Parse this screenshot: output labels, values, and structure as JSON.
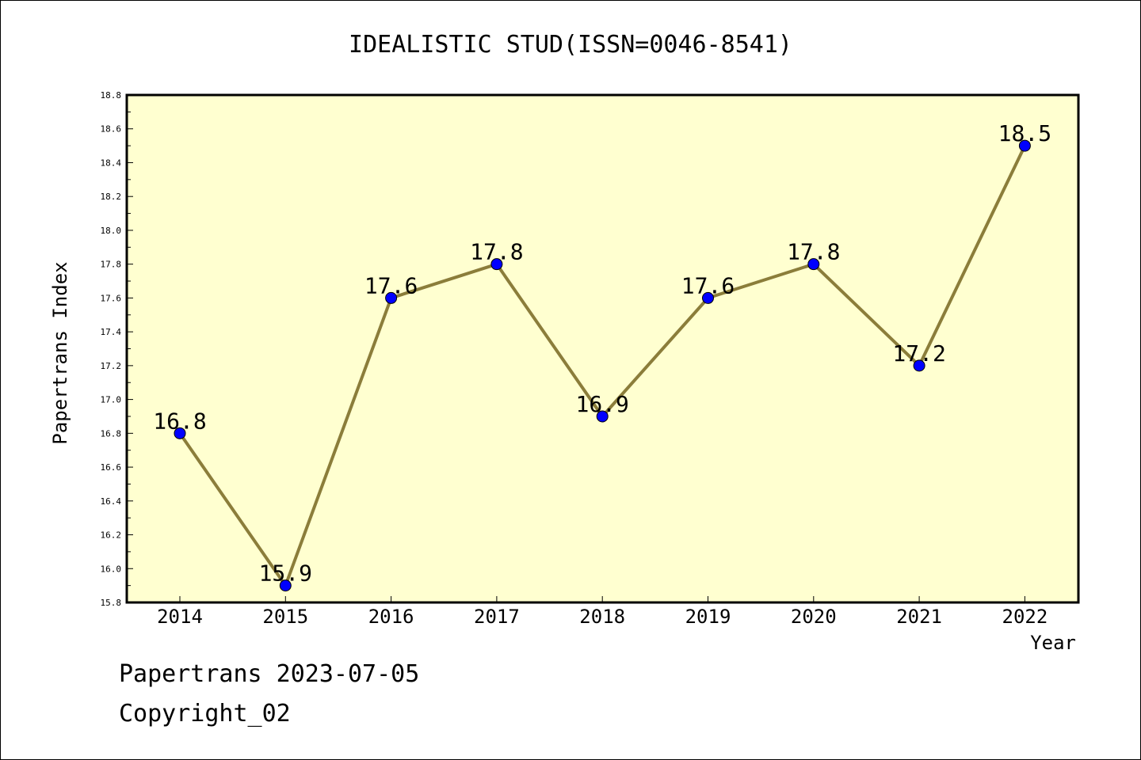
{
  "chart_data": {
    "type": "line",
    "title": "IDEALISTIC STUD(ISSN=0046-8541)",
    "xlabel": "Year",
    "ylabel": "Papertrans Index",
    "categories": [
      "2014",
      "2015",
      "2016",
      "2017",
      "2018",
      "2019",
      "2020",
      "2021",
      "2022"
    ],
    "series": [
      {
        "values": [
          16.8,
          15.9,
          17.6,
          17.8,
          16.9,
          17.6,
          17.8,
          17.2,
          18.5
        ],
        "labels": [
          "16.8",
          "15.9",
          "17.6",
          "17.8",
          "16.9",
          "17.6",
          "17.8",
          "17.2",
          "18.5"
        ]
      }
    ],
    "ylim": [
      15.8,
      18.8
    ],
    "yticks": [
      "15.8",
      "16.0",
      "16.2",
      "16.4",
      "16.6",
      "16.8",
      "17.0",
      "17.2",
      "17.4",
      "17.6",
      "17.8",
      "18.0",
      "18.2",
      "18.4",
      "18.6",
      "18.8"
    ],
    "grid": false,
    "colors": {
      "plot_bg": "#ffffd0",
      "line": "#8b7d3a",
      "marker": "#0000ff"
    }
  },
  "footer": {
    "line1": "Papertrans 2023-07-05",
    "line2": "Copyright_02"
  }
}
